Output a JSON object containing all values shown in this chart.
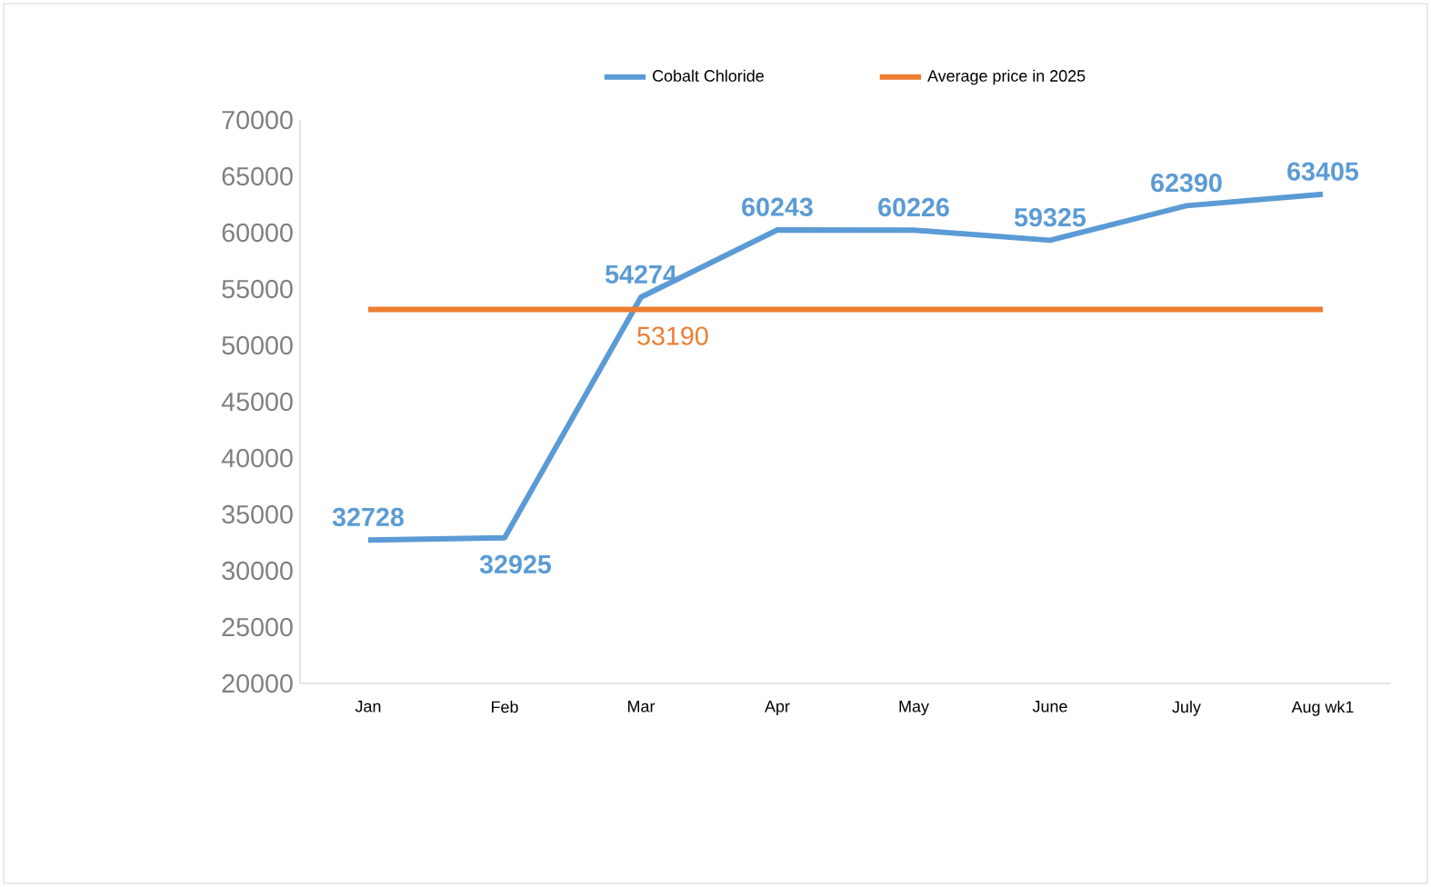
{
  "chart_data": {
    "type": "line",
    "categories": [
      "Jan",
      "Feb",
      "Mar",
      "Apr",
      "May",
      "June",
      "July",
      "Aug wk1"
    ],
    "series": [
      {
        "name": "Cobalt Chloride",
        "color": "#5b9bd5",
        "values": [
          32728,
          32925,
          54274,
          60243,
          60226,
          59325,
          62390,
          63405
        ],
        "value_labels": [
          "32728",
          "32925",
          "54274",
          "60243",
          "60226",
          "59325",
          "62390",
          "63405"
        ]
      },
      {
        "name": "Average price in 2025",
        "color": "#ed7d31",
        "values": [
          53190,
          53190,
          53190,
          53190,
          53190,
          53190,
          53190,
          53190
        ],
        "value_labels": [
          null,
          null,
          "53190",
          null,
          null,
          null,
          null,
          null
        ]
      }
    ],
    "ylim": [
      20000,
      70000
    ],
    "yticks": [
      20000,
      25000,
      30000,
      35000,
      40000,
      45000,
      50000,
      55000,
      60000,
      65000,
      70000
    ],
    "grid": false,
    "legend": "top",
    "marker": "none",
    "line_style": "solid"
  }
}
